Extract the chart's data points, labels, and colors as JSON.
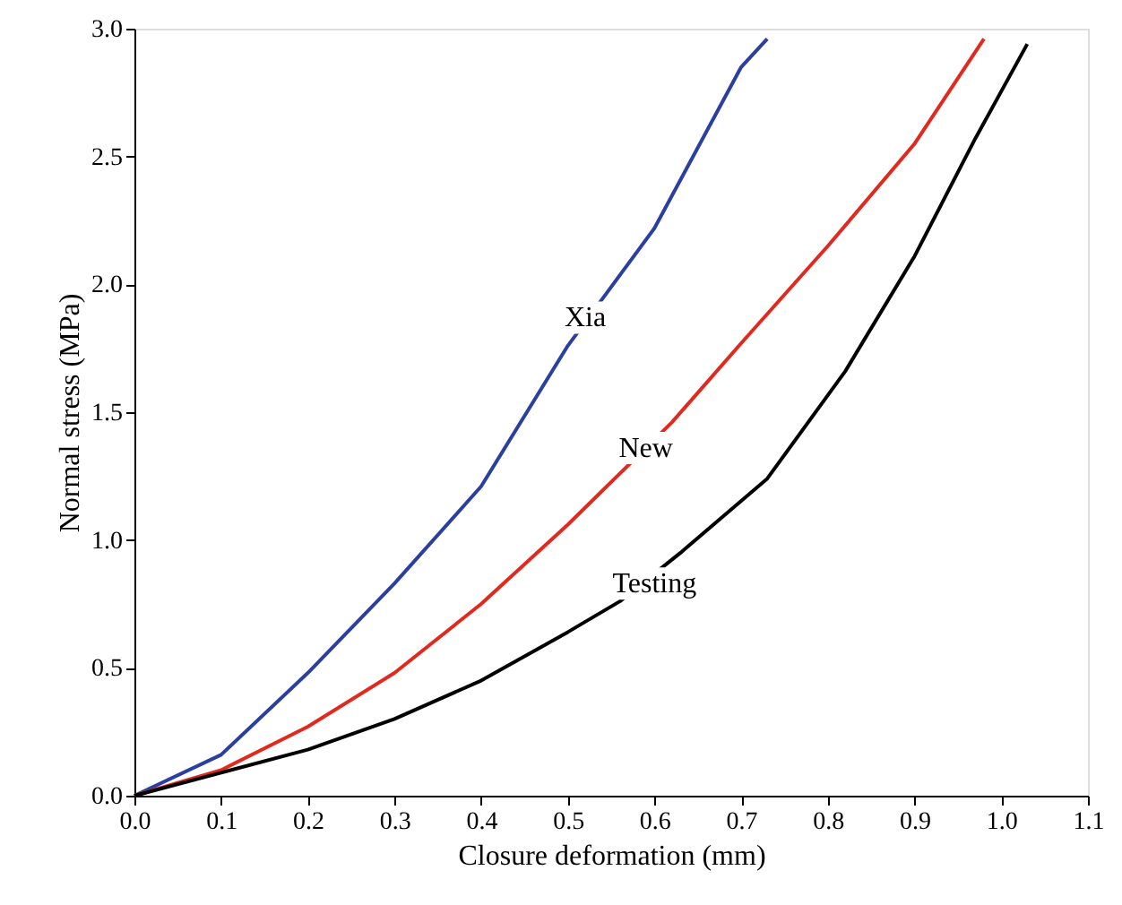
{
  "chart_data": {
    "type": "line",
    "xlabel": "Closure deformation (mm)",
    "ylabel": "Normal stress (MPa)",
    "xlim": [
      0,
      1.1
    ],
    "xticks": [
      {
        "value": 0,
        "label": "0.0"
      },
      0.1,
      0.2,
      0.3,
      0.4,
      0.5,
      0.6,
      0.7,
      0.8,
      0.9,
      {
        "value": 1,
        "label": "1.0"
      },
      1.1
    ],
    "ylim": [
      0,
      3
    ],
    "yticks": [
      {
        "value": 0,
        "label": "0.0"
      },
      0.5,
      {
        "value": 1,
        "label": "1.0"
      },
      1.5,
      {
        "value": 2,
        "label": "2.0"
      },
      2.5,
      {
        "value": 3,
        "label": "3.0"
      }
    ],
    "grid": false,
    "marker": "none",
    "line_style": "solid",
    "series": [
      {
        "color": "#2b3fa0",
        "x": [
          0,
          0.1,
          0.2,
          0.3,
          0.4,
          0.5,
          0.6,
          0.7,
          0.73
        ],
        "values": [
          0,
          0.16,
          0.48,
          0.83,
          1.21,
          1.76,
          2.22,
          2.85,
          2.96
        ]
      },
      {
        "color": "#e02a1f",
        "x": [
          0,
          0.1,
          0.2,
          0.3,
          0.4,
          0.5,
          0.62,
          0.7,
          0.8,
          0.9,
          0.98
        ],
        "values": [
          0,
          0.1,
          0.27,
          0.48,
          0.75,
          1.06,
          1.46,
          1.77,
          2.15,
          2.55,
          2.96
        ]
      },
      {
        "color": "#000000",
        "x": [
          0,
          0.1,
          0.2,
          0.3,
          0.4,
          0.5,
          0.56,
          0.63,
          0.73,
          0.82,
          0.9,
          0.97,
          1.03
        ],
        "values": [
          0,
          0.09,
          0.18,
          0.3,
          0.45,
          0.64,
          0.76,
          0.95,
          1.24,
          1.66,
          2.11,
          2.57,
          2.94
        ]
      }
    ],
    "annotations": [
      {
        "text": "Xia",
        "x": 0.52,
        "y": 1.87
      },
      {
        "text": "New",
        "x": 0.59,
        "y": 1.36
      },
      {
        "text": "Testing",
        "x": 0.6,
        "y": 0.83
      }
    ]
  }
}
